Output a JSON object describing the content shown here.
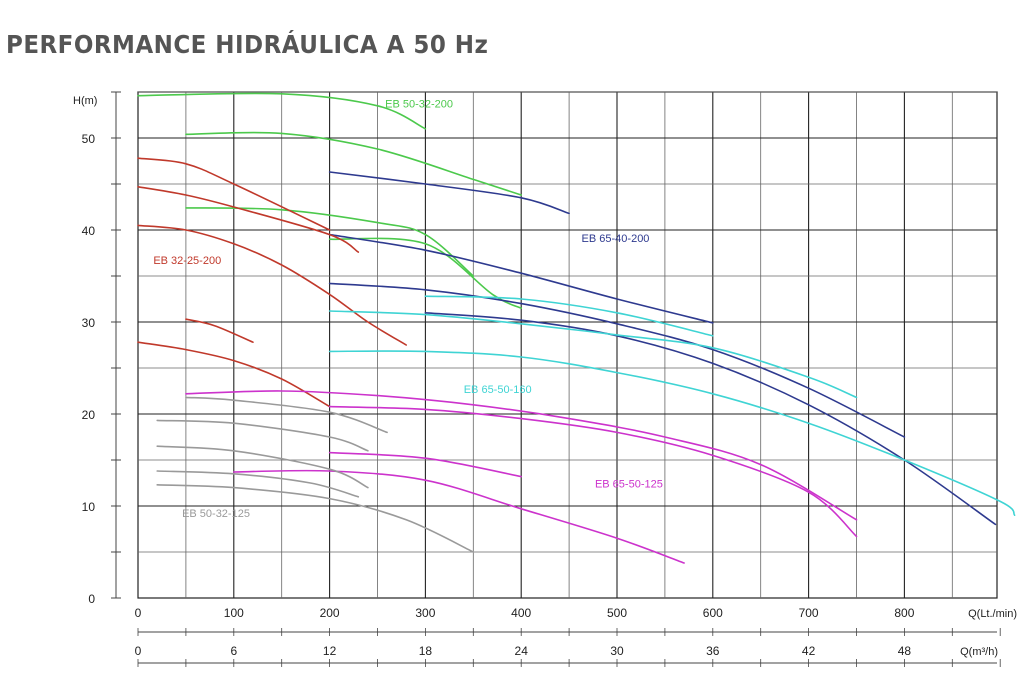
{
  "chart_data": {
    "type": "line",
    "title": "PERFORMANCE HIDRÁULICA A 50 Hz",
    "ylabel": "H(m)",
    "xlabel": "Q(Lt./min)",
    "x2label": "Q(m³/h)",
    "xlim": [
      0,
      900
    ],
    "ylim": [
      0,
      55
    ],
    "grid": true,
    "y_ticks": [
      "0",
      "10",
      "20",
      "30",
      "40",
      "50"
    ],
    "x_ticks": [
      "0",
      "100",
      "200",
      "300",
      "400",
      "500",
      "600",
      "700",
      "800"
    ],
    "x2_ticks": [
      "0",
      "6",
      "12",
      "18",
      "24",
      "30",
      "36",
      "42",
      "48"
    ],
    "curve_labels": [
      {
        "text": "EB 50-32-200",
        "color": "#4cc94c",
        "x": 258,
        "y": 53.3
      },
      {
        "text": "EB 65-40-200",
        "color": "#2e3a8f",
        "x": 463,
        "y": 38.7
      },
      {
        "text": "EB 32-25-200",
        "color": "#c0392b",
        "x": 16,
        "y": 36.3
      },
      {
        "text": "EB 65-50-160",
        "color": "#3fd4d4",
        "x": 340,
        "y": 22.3
      },
      {
        "text": "EB 65-50-125",
        "color": "#cc33cc",
        "x": 477,
        "y": 12.0
      },
      {
        "text": "EB 50-32-125",
        "color": "#9a9a9a",
        "x": 46,
        "y": 8.8
      }
    ],
    "series": [
      {
        "model": "EB 50-32-200",
        "color": "#4cc94c",
        "points": [
          [
            0,
            54.6
          ],
          [
            150,
            54.8
          ],
          [
            250,
            53.5
          ],
          [
            300,
            51.0
          ]
        ]
      },
      {
        "model": "EB 50-32-200",
        "color": "#4cc94c",
        "points": [
          [
            50,
            50.4
          ],
          [
            150,
            50.5
          ],
          [
            250,
            48.8
          ],
          [
            350,
            45.5
          ],
          [
            400,
            43.8
          ]
        ]
      },
      {
        "model": "EB 50-32-200",
        "color": "#4cc94c",
        "points": [
          [
            50,
            42.4
          ],
          [
            150,
            42.2
          ],
          [
            250,
            40.8
          ],
          [
            300,
            39.5
          ],
          [
            350,
            35.0
          ]
        ]
      },
      {
        "model": "EB 50-32-200",
        "color": "#4cc94c",
        "points": [
          [
            200,
            39.0
          ],
          [
            300,
            38.5
          ],
          [
            370,
            33.0
          ],
          [
            400,
            31.5
          ]
        ]
      },
      {
        "model": "EB 65-40-200",
        "color": "#2e3a8f",
        "points": [
          [
            200,
            46.3
          ],
          [
            300,
            45.0
          ],
          [
            400,
            43.5
          ],
          [
            450,
            41.8
          ]
        ]
      },
      {
        "model": "EB 65-40-200",
        "color": "#2e3a8f",
        "points": [
          [
            200,
            39.5
          ],
          [
            300,
            37.8
          ],
          [
            400,
            35.3
          ],
          [
            500,
            32.5
          ],
          [
            600,
            29.9
          ]
        ]
      },
      {
        "model": "EB 65-40-200",
        "color": "#2e3a8f",
        "points": [
          [
            200,
            34.2
          ],
          [
            300,
            33.5
          ],
          [
            400,
            32.0
          ],
          [
            500,
            29.8
          ],
          [
            600,
            27.0
          ],
          [
            700,
            22.8
          ],
          [
            800,
            17.5
          ]
        ]
      },
      {
        "model": "EB 65-40-200",
        "color": "#2e3a8f",
        "points": [
          [
            300,
            31.0
          ],
          [
            400,
            30.2
          ],
          [
            500,
            28.5
          ],
          [
            600,
            25.5
          ],
          [
            700,
            21.0
          ],
          [
            800,
            15.0
          ],
          [
            895,
            8.0
          ]
        ]
      },
      {
        "model": "EB 32-25-200",
        "color": "#c0392b",
        "points": [
          [
            0,
            47.8
          ],
          [
            50,
            47.2
          ],
          [
            100,
            45.0
          ],
          [
            200,
            40.0
          ]
        ]
      },
      {
        "model": "EB 32-25-200",
        "color": "#c0392b",
        "points": [
          [
            0,
            44.7
          ],
          [
            50,
            43.8
          ],
          [
            100,
            42.5
          ],
          [
            200,
            39.5
          ],
          [
            230,
            37.6
          ]
        ]
      },
      {
        "model": "EB 32-25-200",
        "color": "#c0392b",
        "points": [
          [
            0,
            40.5
          ],
          [
            50,
            40.0
          ],
          [
            100,
            38.5
          ],
          [
            150,
            36.2
          ],
          [
            200,
            33.0
          ],
          [
            240,
            30.0
          ],
          [
            280,
            27.5
          ]
        ]
      },
      {
        "model": "EB 32-25-200",
        "color": "#c0392b",
        "points": [
          [
            50,
            30.3
          ],
          [
            80,
            29.6
          ],
          [
            120,
            27.8
          ]
        ]
      },
      {
        "model": "EB 32-25-200",
        "color": "#c0392b",
        "points": [
          [
            0,
            27.8
          ],
          [
            50,
            27.0
          ],
          [
            100,
            25.8
          ],
          [
            150,
            23.8
          ],
          [
            200,
            20.8
          ]
        ]
      },
      {
        "model": "EB 65-50-160",
        "color": "#3fd4d4",
        "points": [
          [
            200,
            31.2
          ],
          [
            300,
            30.8
          ],
          [
            400,
            29.8
          ],
          [
            500,
            28.6
          ],
          [
            600,
            27.2
          ],
          [
            700,
            24.0
          ],
          [
            750,
            21.8
          ]
        ]
      },
      {
        "model": "EB 65-50-160",
        "color": "#3fd4d4",
        "points": [
          [
            300,
            32.8
          ],
          [
            400,
            32.5
          ],
          [
            500,
            31.0
          ],
          [
            600,
            28.5
          ]
        ]
      },
      {
        "model": "EB 65-50-160",
        "color": "#3fd4d4",
        "points": [
          [
            200,
            26.8
          ],
          [
            300,
            26.8
          ],
          [
            400,
            26.2
          ],
          [
            500,
            24.5
          ],
          [
            600,
            22.2
          ],
          [
            700,
            19.0
          ],
          [
            800,
            15.0
          ],
          [
            900,
            10.5
          ],
          [
            915,
            9.0
          ]
        ]
      },
      {
        "model": "EB 65-50-125",
        "color": "#cc33cc",
        "points": [
          [
            50,
            22.2
          ],
          [
            150,
            22.5
          ],
          [
            250,
            22.0
          ],
          [
            350,
            21.0
          ],
          [
            450,
            19.5
          ],
          [
            550,
            17.5
          ],
          [
            650,
            14.5
          ],
          [
            750,
            8.5
          ]
        ]
      },
      {
        "model": "EB 65-50-125",
        "color": "#cc33cc",
        "points": [
          [
            200,
            20.8
          ],
          [
            300,
            20.5
          ],
          [
            400,
            19.5
          ],
          [
            500,
            18.0
          ],
          [
            600,
            15.5
          ],
          [
            700,
            11.5
          ],
          [
            750,
            6.7
          ]
        ]
      },
      {
        "model": "EB 65-50-125",
        "color": "#cc33cc",
        "points": [
          [
            200,
            15.8
          ],
          [
            300,
            15.2
          ],
          [
            400,
            13.2
          ]
        ]
      },
      {
        "model": "EB 65-50-125",
        "color": "#cc33cc",
        "points": [
          [
            100,
            13.7
          ],
          [
            200,
            13.8
          ],
          [
            300,
            12.8
          ],
          [
            400,
            9.7
          ],
          [
            500,
            6.5
          ],
          [
            570,
            3.8
          ]
        ]
      },
      {
        "model": "EB 50-32-125",
        "color": "#9a9a9a",
        "points": [
          [
            50,
            21.8
          ],
          [
            100,
            21.5
          ],
          [
            200,
            20.2
          ],
          [
            260,
            18.0
          ]
        ]
      },
      {
        "model": "EB 50-32-125",
        "color": "#9a9a9a",
        "points": [
          [
            20,
            19.3
          ],
          [
            100,
            19.0
          ],
          [
            200,
            17.5
          ],
          [
            240,
            16.0
          ]
        ]
      },
      {
        "model": "EB 50-32-125",
        "color": "#9a9a9a",
        "points": [
          [
            20,
            16.5
          ],
          [
            100,
            16.0
          ],
          [
            200,
            14.0
          ],
          [
            240,
            12.0
          ]
        ]
      },
      {
        "model": "EB 50-32-125",
        "color": "#9a9a9a",
        "points": [
          [
            20,
            13.8
          ],
          [
            100,
            13.5
          ],
          [
            180,
            12.5
          ],
          [
            230,
            11.0
          ]
        ]
      },
      {
        "model": "EB 50-32-125",
        "color": "#9a9a9a",
        "points": [
          [
            20,
            12.3
          ],
          [
            100,
            12.0
          ],
          [
            200,
            10.8
          ],
          [
            280,
            8.5
          ],
          [
            350,
            5.0
          ]
        ]
      }
    ]
  }
}
